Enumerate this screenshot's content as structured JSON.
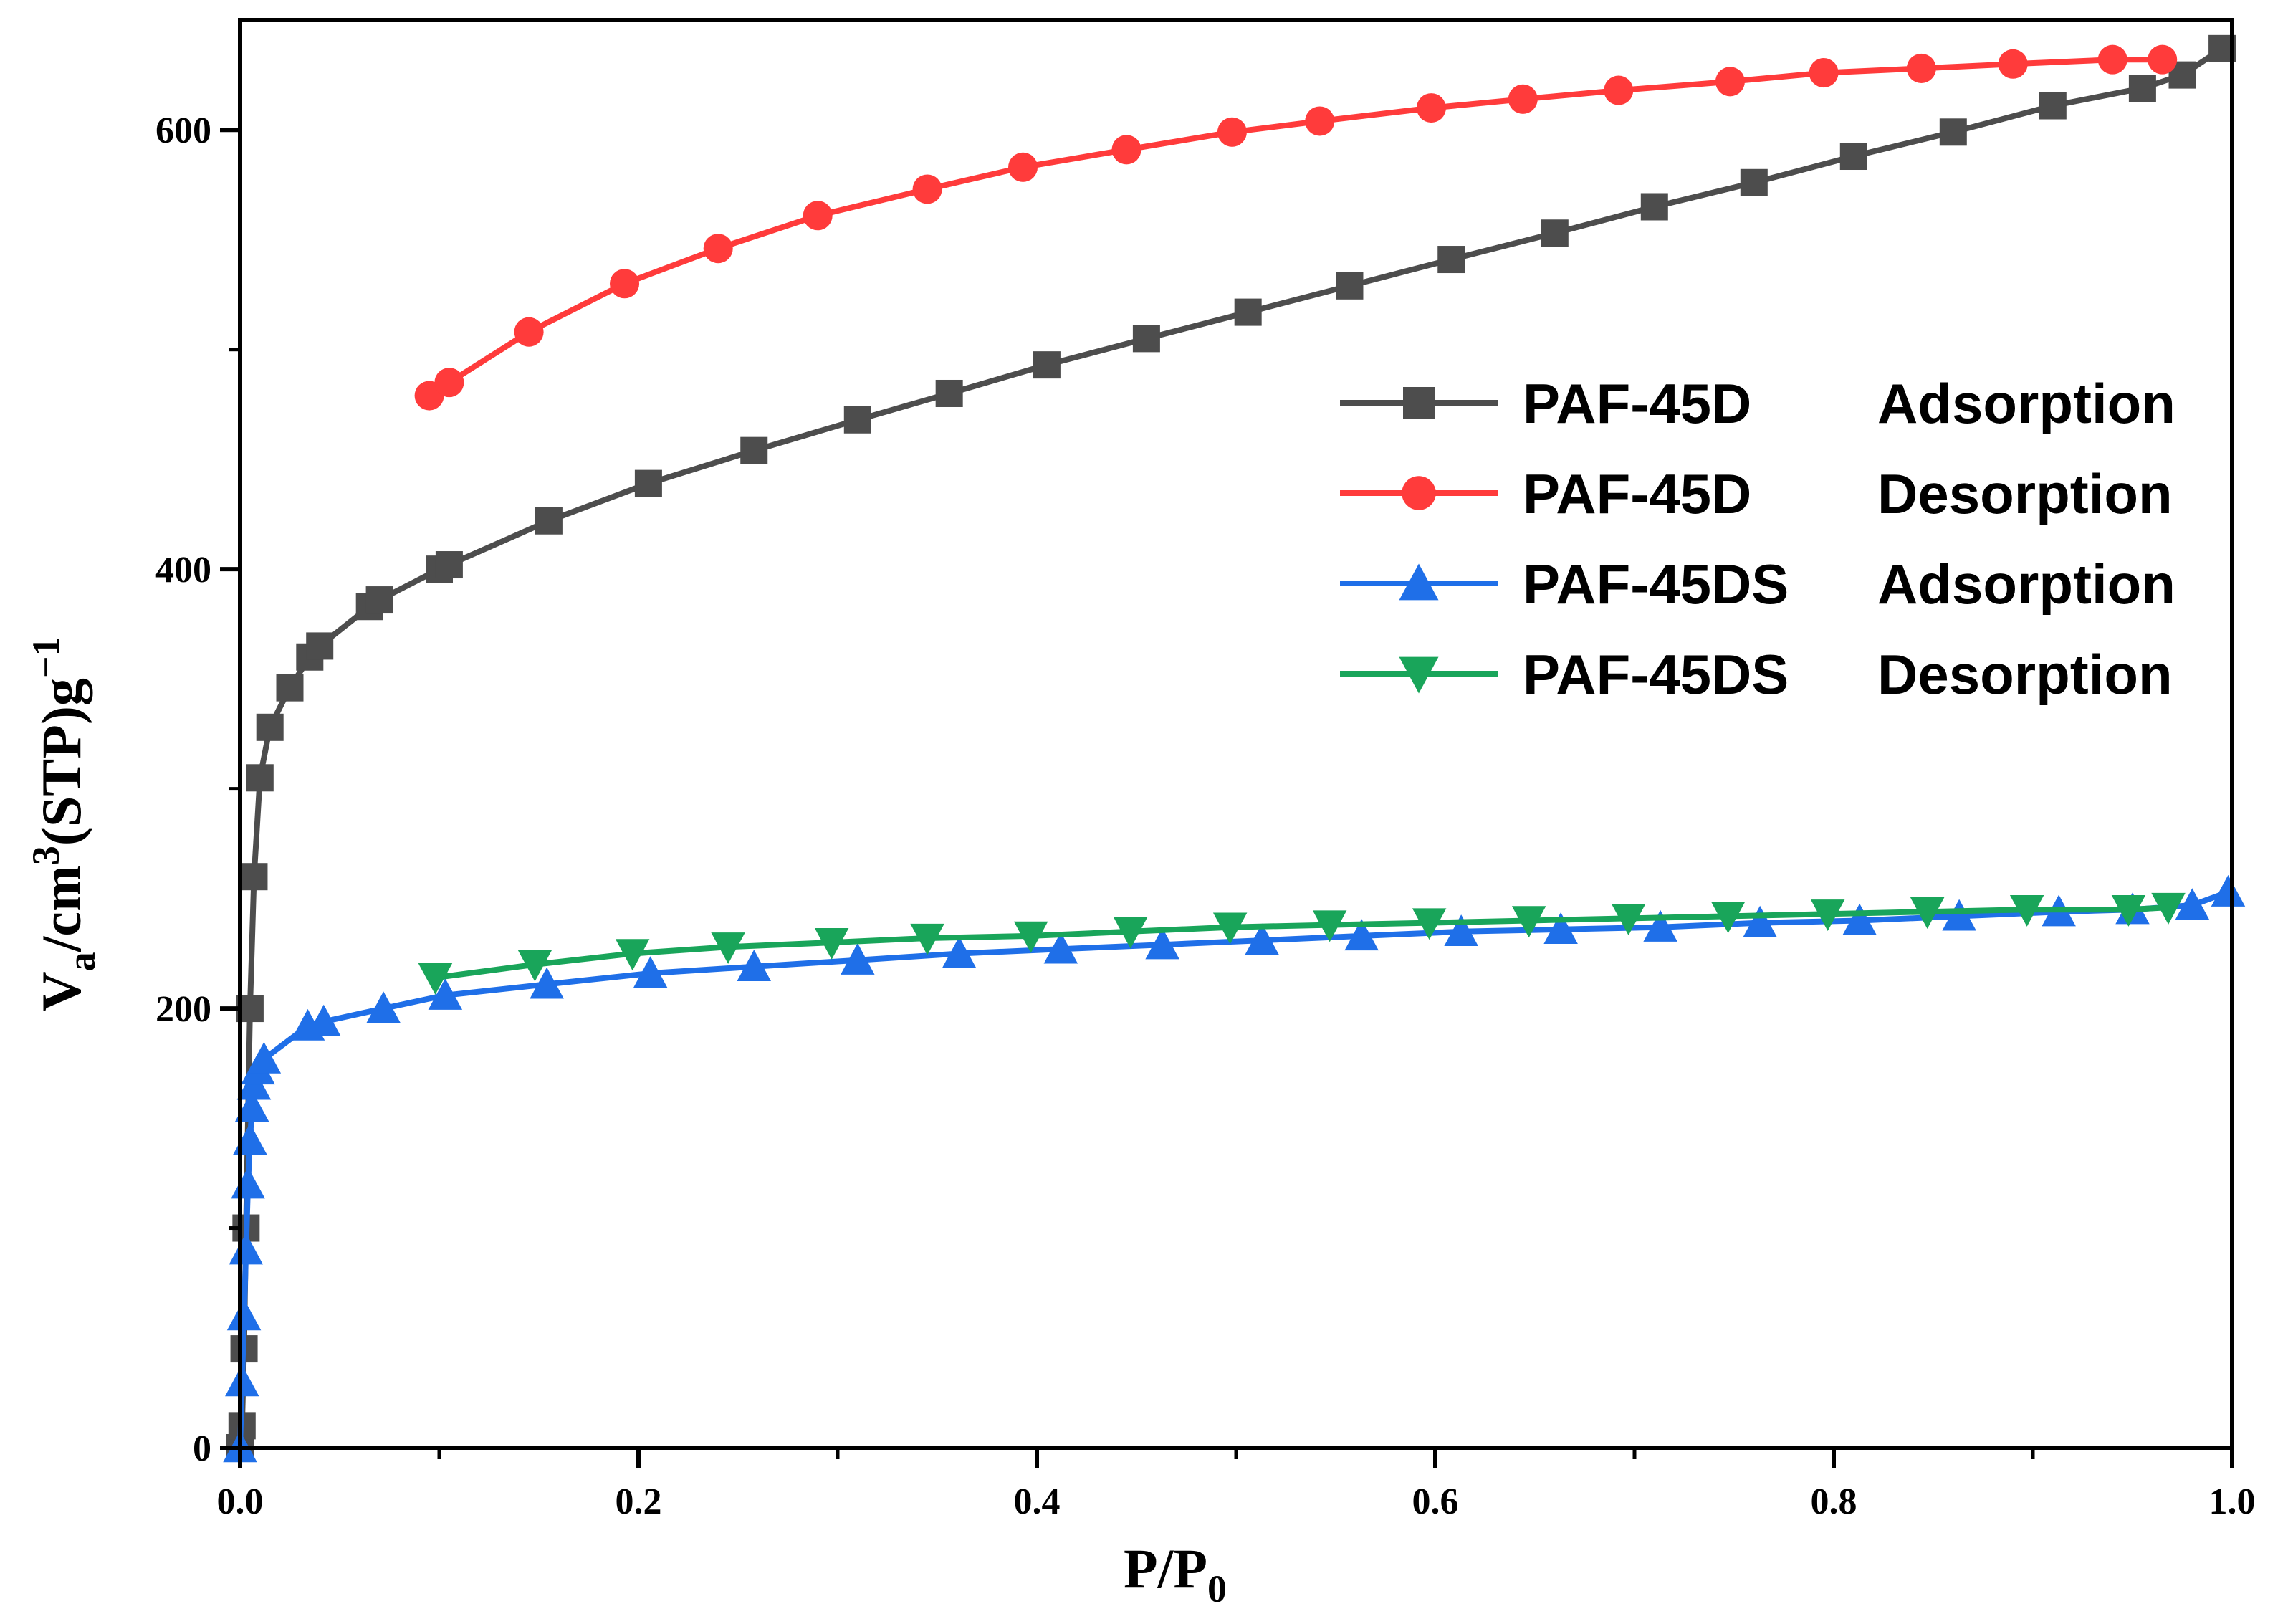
{
  "chart_data": {
    "type": "line",
    "title": "",
    "xlabel": "P/P",
    "xlabel_subscript": "0",
    "ylabel_parts": {
      "v": "V",
      "v_sub": "a",
      "mid": "/cm",
      "sup3": "3",
      "stp": "(STP)g",
      "sup_neg1": "−1"
    },
    "xlim": [
      0,
      1.0
    ],
    "ylim": [
      0,
      650
    ],
    "x_ticks": [
      0.0,
      0.2,
      0.4,
      0.6,
      0.8,
      1.0
    ],
    "x_tick_labels": [
      "0.0",
      "0.2",
      "0.4",
      "0.6",
      "0.8",
      "1.0"
    ],
    "y_ticks": [
      0,
      200,
      400,
      600
    ],
    "y_tick_labels": [
      "0",
      "200",
      "400",
      "600"
    ],
    "y_minor_ticks": [
      100,
      300,
      500
    ],
    "grid": false,
    "legend_position": "right",
    "series": [
      {
        "name": "PAF-45D",
        "mode": "Adsorption",
        "color": "#4d4d4d",
        "marker": "square",
        "x": [
          0.0,
          0.001,
          0.002,
          0.003,
          0.005,
          0.007,
          0.01,
          0.015,
          0.025,
          0.035,
          0.04,
          0.065,
          0.07,
          0.1,
          0.105,
          0.155,
          0.205,
          0.258,
          0.31,
          0.356,
          0.405,
          0.455,
          0.506,
          0.557,
          0.608,
          0.66,
          0.71,
          0.76,
          0.81,
          0.86,
          0.91,
          0.955,
          0.975,
          0.995
        ],
        "y": [
          0,
          10,
          45,
          100,
          200,
          260,
          305,
          328,
          346,
          360,
          365,
          383,
          386,
          400,
          402,
          422,
          439,
          454,
          468,
          480,
          493,
          505,
          517,
          529,
          541,
          553,
          565,
          576,
          588,
          599,
          611,
          619,
          625,
          637
        ]
      },
      {
        "name": "PAF-45D",
        "mode": "Desorption",
        "color": "#ff3b3b",
        "marker": "circle",
        "x": [
          0.095,
          0.105,
          0.145,
          0.193,
          0.24,
          0.29,
          0.345,
          0.393,
          0.445,
          0.498,
          0.542,
          0.598,
          0.644,
          0.692,
          0.748,
          0.795,
          0.844,
          0.89,
          0.94,
          0.965
        ],
        "y": [
          479,
          485,
          508,
          530,
          546,
          561,
          573,
          583,
          591,
          599,
          604,
          610,
          614,
          618,
          622,
          626,
          628,
          630,
          632,
          632
        ]
      },
      {
        "name": "PAF-45DS",
        "mode": "Adsorption",
        "color": "#1f6fe8",
        "marker": "triangle-up",
        "x": [
          0.0,
          0.001,
          0.002,
          0.003,
          0.004,
          0.005,
          0.006,
          0.007,
          0.009,
          0.012,
          0.034,
          0.042,
          0.072,
          0.103,
          0.154,
          0.206,
          0.258,
          0.31,
          0.361,
          0.412,
          0.463,
          0.513,
          0.563,
          0.613,
          0.663,
          0.713,
          0.763,
          0.813,
          0.863,
          0.913,
          0.95,
          0.98,
          0.998
        ],
        "y": [
          0,
          30,
          60,
          90,
          120,
          140,
          155,
          165,
          172,
          177,
          192,
          194,
          200,
          206,
          211,
          216,
          219,
          222,
          225,
          227,
          229,
          231,
          233,
          235,
          236,
          237,
          239,
          240,
          242,
          244,
          245,
          247,
          253
        ]
      },
      {
        "name": "PAF-45DS",
        "mode": "Desorption",
        "color": "#19a55a",
        "marker": "triangle-down",
        "x": [
          0.098,
          0.148,
          0.197,
          0.245,
          0.297,
          0.345,
          0.397,
          0.447,
          0.497,
          0.547,
          0.597,
          0.647,
          0.697,
          0.747,
          0.797,
          0.847,
          0.897,
          0.948,
          0.968
        ],
        "y": [
          214,
          220,
          225,
          228,
          230,
          232,
          233,
          235,
          237,
          238,
          239,
          240,
          241,
          242,
          243,
          244,
          245,
          245,
          246
        ]
      }
    ]
  }
}
